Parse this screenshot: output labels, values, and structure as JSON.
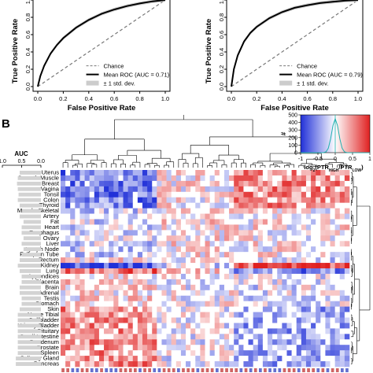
{
  "chart_data": [
    {
      "type": "line",
      "panel": "A-left",
      "xlabel": "False Positive Rate",
      "ylabel": "True Positive Rate",
      "xlim": [
        0,
        1
      ],
      "ylim": [
        0,
        1
      ],
      "x_ticks": [
        "0.0",
        "0.2",
        "0.4",
        "0.6",
        "0.8",
        "1.0"
      ],
      "y_ticks": [
        "0.0",
        "0.2",
        "0.4",
        "0.6",
        "0.8",
        "1.0"
      ],
      "legend_position": "bottom-right",
      "series": [
        {
          "name": "Chance",
          "style": "dashed",
          "color": "#777777",
          "x": [
            0,
            1
          ],
          "y": [
            0,
            1
          ]
        },
        {
          "name": "Mean ROC (AUC = 0.71)",
          "style": "solid",
          "color": "#000000",
          "x": [
            0,
            0.02,
            0.05,
            0.1,
            0.15,
            0.2,
            0.3,
            0.4,
            0.5,
            0.6,
            0.7,
            0.8,
            0.9,
            1.0
          ],
          "y": [
            0,
            0.12,
            0.24,
            0.38,
            0.48,
            0.56,
            0.68,
            0.77,
            0.84,
            0.89,
            0.93,
            0.96,
            0.985,
            1.0
          ]
        },
        {
          "name": "± 1 std. dev.",
          "style": "band",
          "color": "#cccccc"
        }
      ]
    },
    {
      "type": "line",
      "panel": "A-right",
      "xlabel": "False Positive Rate",
      "ylabel": "True Positive Rate",
      "xlim": [
        0,
        1
      ],
      "ylim": [
        0,
        1
      ],
      "x_ticks": [
        "0.0",
        "0.2",
        "0.4",
        "0.6",
        "0.8",
        "1.0"
      ],
      "y_ticks": [
        "0.0",
        "0.2",
        "0.4",
        "0.6",
        "0.8",
        "1.0"
      ],
      "legend_position": "bottom-right",
      "series": [
        {
          "name": "Chance",
          "style": "dashed",
          "color": "#777777",
          "x": [
            0,
            1
          ],
          "y": [
            0,
            1
          ]
        },
        {
          "name": "Mean ROC (AUC = 0.79)",
          "style": "solid",
          "color": "#000000",
          "x": [
            0,
            0.02,
            0.05,
            0.1,
            0.15,
            0.2,
            0.3,
            0.4,
            0.5,
            0.6,
            0.7,
            0.8,
            0.9,
            1.0
          ],
          "y": [
            0,
            0.2,
            0.36,
            0.52,
            0.62,
            0.69,
            0.79,
            0.86,
            0.91,
            0.94,
            0.965,
            0.98,
            0.993,
            1.0
          ]
        },
        {
          "name": "± 1 std. dev.",
          "style": "band",
          "color": "#cccccc"
        }
      ]
    },
    {
      "type": "heatmap",
      "panel": "B",
      "panel_label": "B",
      "colorbar": {
        "label": "log2(PTR_HIGH/PTR_LOW)",
        "label_base": "log",
        "label_sub1": "2",
        "label_mid": "(PTR",
        "label_sub2": "HIGH",
        "label_mid2": "/PTR",
        "label_sub3": "LOW",
        "label_end": ")",
        "ticks": [
          "-1",
          "-0.5",
          "0",
          "0.5",
          "1"
        ],
        "hist_label": "#",
        "hist_ticks": [
          "500",
          "400",
          "300",
          "200",
          "100",
          "0"
        ],
        "colors": [
          "#2030d8",
          "#ffffff",
          "#e02020"
        ]
      },
      "auc_axis": {
        "label": "AUC",
        "ticks": [
          "1.0",
          "0.5",
          "0.0"
        ]
      },
      "rows": [
        "Uterus",
        "Smooth Muscle",
        "Breast",
        "Vagina",
        "Tonsil",
        "Colon",
        "Thyroid",
        "Muscle Skeletal",
        "Artery",
        "Fat",
        "Heart",
        "Esophagus",
        "Ovary",
        "Liver",
        "Lymph Node",
        "Fallopian Tube",
        "Rectum",
        "Kidney",
        "Lung",
        "Appendices",
        "Placenta",
        "Brain",
        "Adrenal",
        "Testis",
        "Stomach",
        "Skin",
        "Nerve Tibial",
        "Gallbladder",
        "Urinary Bladder",
        "Pituitary",
        "Small Intestine",
        "Duodenum",
        "Prostate",
        "Spleen",
        "Salivary Gland",
        "Pancreas"
      ],
      "row_auc": [
        0.55,
        0.6,
        0.62,
        0.6,
        0.58,
        0.6,
        0.55,
        0.5,
        0.55,
        0.45,
        0.5,
        0.5,
        0.45,
        0.5,
        0.45,
        0.5,
        0.55,
        0.6,
        0.55,
        0.5,
        0.5,
        0.55,
        0.55,
        0.5,
        0.5,
        0.55,
        0.6,
        0.6,
        0.6,
        0.6,
        0.6,
        0.6,
        0.6,
        0.6,
        0.65,
        0.65
      ],
      "n_columns": 60,
      "value_range": [
        -1,
        1
      ]
    }
  ]
}
